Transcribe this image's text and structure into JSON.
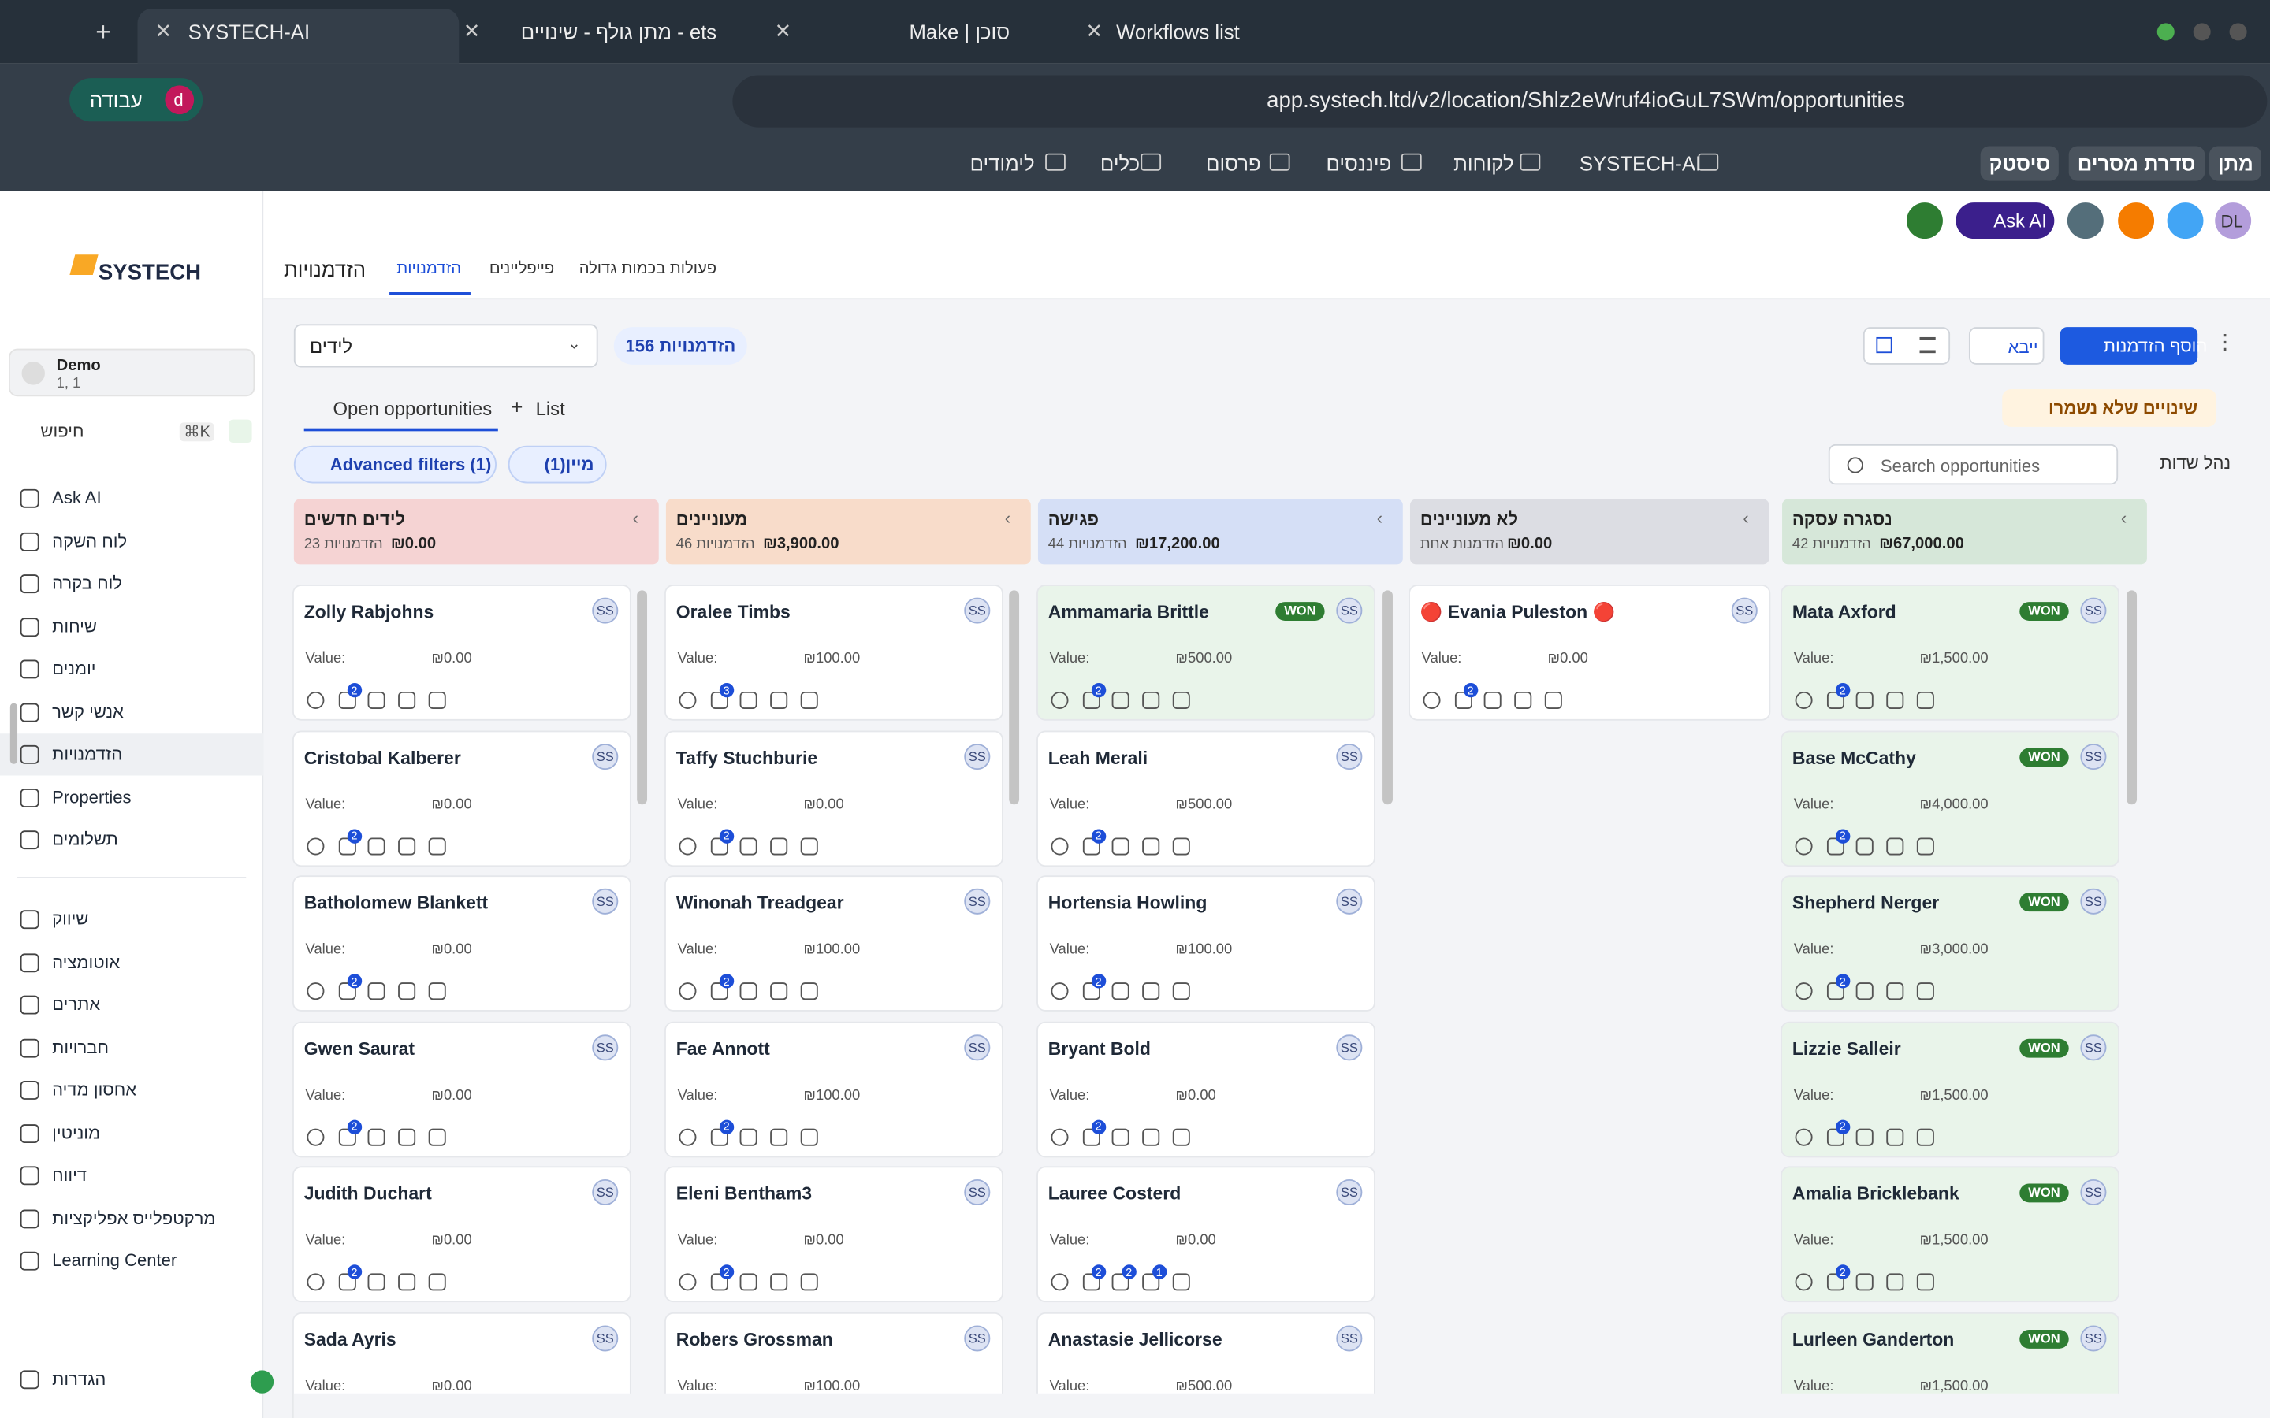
{
  "browser": {
    "tabs": [
      "SYSTECH-AI",
      "ets - מתן גולף - שינויים",
      "Make | סוכן",
      "Workflows list"
    ],
    "profile": "עבודה",
    "profile_avatar": "d",
    "url": "app.systech.ltd/v2/location/Shlz2eWruf4ioGuL7SWm/opportunities",
    "bookmarks": [
      "לימודים",
      "כלים",
      "פרסום",
      "פיננסים",
      "לקוחות",
      "SYSTECH-AI",
      "סיסטק",
      "סדרת מסרים",
      "מתן"
    ]
  },
  "header": {
    "ask_ai": "Ask AI",
    "avatar": "DL"
  },
  "sidebar": {
    "logo": "SYSTECH",
    "account": {
      "name": "Demo",
      "sub": "1, 1"
    },
    "search": "חיפוש",
    "shortcut": "⌘K",
    "items": [
      "Ask AI",
      "לוח השקה",
      "לוח בקרה",
      "שיחות",
      "יומנים",
      "אנשי קשר",
      "הזדמנויות",
      "Properties",
      "תשלומים"
    ],
    "items2": [
      "שיווק",
      "אוטומציה",
      "אתרים",
      "חברויות",
      "אחסון מדיה",
      "מוניטין",
      "דיווח",
      "מרקטפלייס אפליקציות",
      "Learning Center"
    ],
    "settings": "הגדרות"
  },
  "page": {
    "title": "הזדמנויות",
    "tabs": [
      "הזדמנויות",
      "פייפליינים",
      "פעולות בכמות גדולה"
    ],
    "pipeline": "לידים",
    "count": "156 הזדמנויות",
    "add": "הוסף הזדמנות",
    "import": "ייבא",
    "views": [
      "Open opportunities",
      "List"
    ],
    "unsaved": "שינויים שלא נשמרו",
    "filters": "Advanced filters (1)",
    "sort": "מיין(1)",
    "search": "Search opportunities",
    "fields": "נהל שדות"
  },
  "board": {
    "value_label": "Value:",
    "owner": "SS",
    "won_label": "WON",
    "columns": [
      {
        "name": "לידים חדשים",
        "count": "23 הזדמנויות",
        "total": "₪0.00",
        "cards": [
          {
            "name": "Zolly Rabjohns",
            "value": "₪0.00",
            "badges": [
              2
            ]
          },
          {
            "name": "Cristobal Kalberer",
            "value": "₪0.00",
            "badges": [
              2
            ]
          },
          {
            "name": "Batholomew Blankett",
            "value": "₪0.00",
            "badges": [
              2
            ]
          },
          {
            "name": "Gwen Saurat",
            "value": "₪0.00",
            "badges": [
              2
            ]
          },
          {
            "name": "Judith Duchart",
            "value": "₪0.00",
            "badges": [
              2
            ]
          },
          {
            "name": "Sada Ayris",
            "value": "₪0.00",
            "badges": []
          }
        ]
      },
      {
        "name": "מעוניינים",
        "count": "46 הזדמנויות",
        "total": "₪3,900.00",
        "cards": [
          {
            "name": "Oralee Timbs",
            "value": "₪100.00",
            "badges": [
              3
            ]
          },
          {
            "name": "Taffy Stuchburie",
            "value": "₪0.00",
            "badges": [
              2
            ]
          },
          {
            "name": "Winonah Treadgear",
            "value": "₪100.00",
            "badges": [
              2
            ]
          },
          {
            "name": "Fae Annott",
            "value": "₪100.00",
            "badges": [
              2
            ]
          },
          {
            "name": "Eleni Bentham3",
            "value": "₪0.00",
            "badges": [
              2
            ]
          },
          {
            "name": "Robers Grossman",
            "value": "₪100.00",
            "badges": []
          }
        ]
      },
      {
        "name": "פגישה",
        "count": "44 הזדמנויות",
        "total": "₪17,200.00",
        "cards": [
          {
            "name": "Ammamaria Brittle",
            "value": "₪500.00",
            "badges": [
              2
            ],
            "won": true
          },
          {
            "name": "Leah Merali",
            "value": "₪500.00",
            "badges": [
              2
            ]
          },
          {
            "name": "Hortensia Howling",
            "value": "₪100.00",
            "badges": [
              2
            ]
          },
          {
            "name": "Bryant Bold",
            "value": "₪0.00",
            "badges": [
              2
            ]
          },
          {
            "name": "Lauree Costerd",
            "value": "₪0.00",
            "badges": [
              2,
              2,
              1
            ]
          },
          {
            "name": "Anastasie Jellicorse",
            "value": "₪500.00",
            "badges": []
          }
        ]
      },
      {
        "name": "לא מעוניינים",
        "count": "הזדמנות אחת",
        "total": "₪0.00",
        "cards": [
          {
            "name": "🔴 Evania Puleston 🔴",
            "value": "₪0.00",
            "badges": [
              2
            ]
          }
        ]
      },
      {
        "name": "נסגרה עסקה",
        "count": "42 הזדמנויות",
        "total": "₪67,000.00",
        "cards": [
          {
            "name": "Mata Axford",
            "value": "₪1,500.00",
            "badges": [
              2
            ],
            "won": true
          },
          {
            "name": "Base McCathy",
            "value": "₪4,000.00",
            "badges": [
              2
            ],
            "won": true
          },
          {
            "name": "Shepherd Nerger",
            "value": "₪3,000.00",
            "badges": [
              2
            ],
            "won": true
          },
          {
            "name": "Lizzie Salleir",
            "value": "₪1,500.00",
            "badges": [
              2
            ],
            "won": true
          },
          {
            "name": "Amalia Bricklebank",
            "value": "₪1,500.00",
            "badges": [
              2
            ],
            "won": true
          },
          {
            "name": "Lurleen Ganderton",
            "value": "₪1,500.00",
            "badges": [],
            "won": true
          }
        ]
      }
    ]
  }
}
